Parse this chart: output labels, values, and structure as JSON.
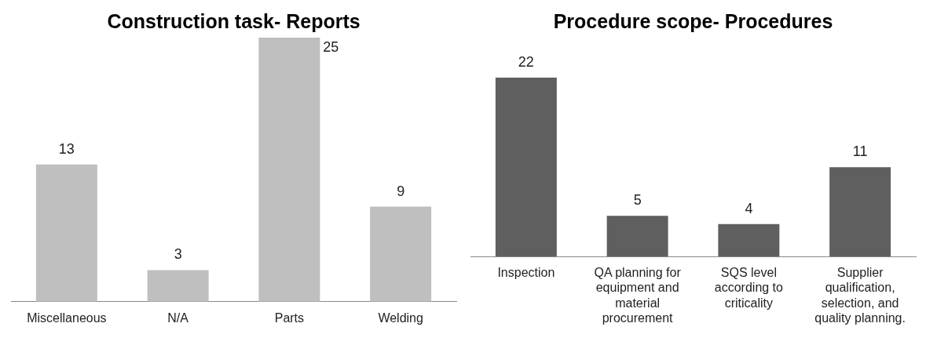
{
  "chart_data": [
    {
      "type": "bar",
      "title": "Construction task- Reports",
      "categories": [
        "Miscellaneous",
        "N/A",
        "Parts",
        "Welding"
      ],
      "values": [
        13,
        3,
        25,
        9
      ],
      "color": "#bfbfbf",
      "data_labels": true,
      "grid": false,
      "legend": false,
      "tick_labels": "x"
    },
    {
      "type": "bar",
      "title": "Procedure scope- Procedures",
      "categories": [
        "Inspection",
        "QA planning for equipment and material procurement",
        "SQS level according to criticality",
        "Supplier qualification, selection, and quality planning."
      ],
      "values": [
        22,
        5,
        4,
        11
      ],
      "color": "#5f5f5f",
      "data_labels": true,
      "grid": false,
      "legend": false,
      "tick_labels": "x"
    }
  ]
}
